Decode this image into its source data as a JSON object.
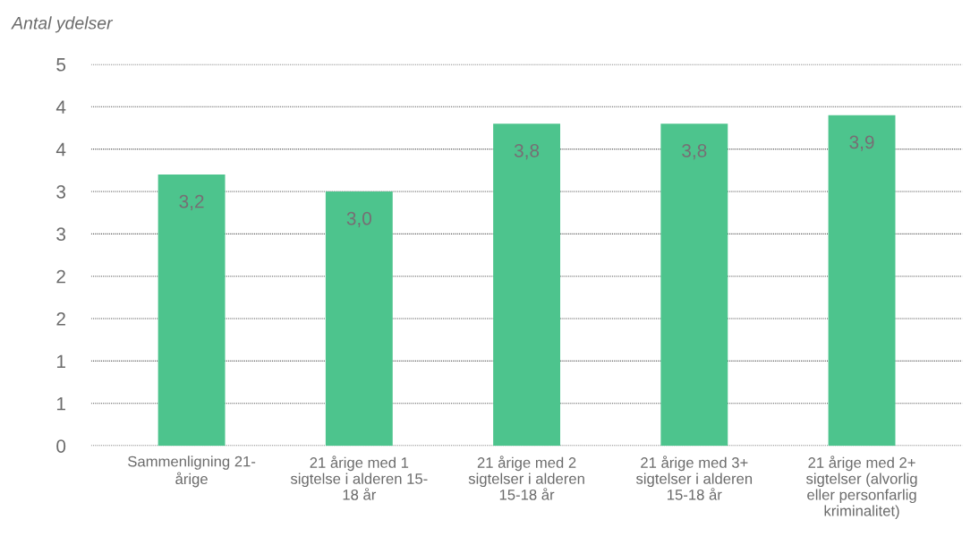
{
  "chart_data": {
    "type": "bar",
    "ylabel": "Antal ydelser",
    "categories": [
      "Sammenligning 21-\nårige",
      "21 årige med 1\nsigtelse i alderen 15-\n18 år",
      "21 årige med 2\nsigtelser i alderen\n15-18 år",
      "21 årige med 3+\nsigtelser i alderen\n15-18 år",
      "21 årige med 2+\nsigtelser (alvorlig\neller personfarlig\nkriminalitet)"
    ],
    "values": [
      3.2,
      3.0,
      3.8,
      3.8,
      3.9
    ],
    "value_labels": [
      "3,2",
      "3,0",
      "3,8",
      "3,8",
      "3,9"
    ],
    "color": "#4dc48d",
    "ylim": [
      0,
      4.5
    ],
    "yticks": [
      0,
      {
        "value": 0.5,
        "label": "1"
      },
      {
        "value": 1,
        "label": "1"
      },
      {
        "value": 1.5,
        "label": "2"
      },
      {
        "value": 2,
        "label": "2"
      },
      {
        "value": 2.5,
        "label": "3"
      },
      {
        "value": 3,
        "label": "3"
      },
      {
        "value": 3.5,
        "label": "4"
      },
      {
        "value": 4,
        "label": "4"
      },
      {
        "value": 4.5,
        "label": "5"
      }
    ],
    "grid": "y",
    "legend": false
  }
}
